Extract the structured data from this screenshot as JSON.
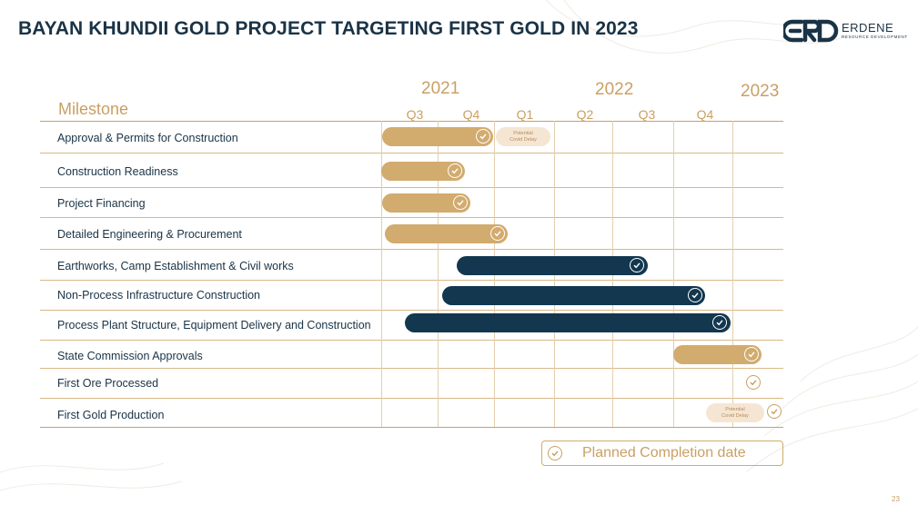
{
  "title": "BAYAN KHUNDII GOLD PROJECT TARGETING FIRST GOLD IN 2023",
  "logo": {
    "name": "ERDENE",
    "tagline": "RESOURCE DEVELOPMENT"
  },
  "timeline": {
    "header": "Milestone",
    "years": [
      "2021",
      "2022",
      "2023"
    ],
    "quarters": [
      "Q3",
      "Q4",
      "Q1",
      "Q2",
      "Q3",
      "Q4"
    ]
  },
  "milestones": [
    {
      "label": "Approval & Permits for Construction",
      "color": "gold",
      "start": "2021 Q3",
      "end": "2021 Q4",
      "completed": true,
      "note": {
        "line1": "Potential",
        "line2": "Covid Delay"
      }
    },
    {
      "label": "Construction Readiness",
      "color": "gold",
      "start": "2021 Q3",
      "end": "2021 Q4",
      "completed": true
    },
    {
      "label": "Project Financing",
      "color": "gold",
      "start": "2021 Q3",
      "end": "2021 Q4",
      "completed": true
    },
    {
      "label": "Detailed Engineering & Procurement",
      "color": "gold",
      "start": "2021 Q3",
      "end": "2021 Q4",
      "completed": true
    },
    {
      "label": "Earthworks, Camp Establishment & Civil works",
      "color": "navy",
      "start": "2021 Q4",
      "end": "2022 Q3",
      "completed": true
    },
    {
      "label": "Non-Process Infrastructure Construction",
      "color": "navy",
      "start": "2021 Q4",
      "end": "2022 Q4",
      "completed": true
    },
    {
      "label": "Process Plant Structure, Equipment Delivery and Construction",
      "color": "navy",
      "start": "2021 Q3",
      "end": "2022 Q4",
      "completed": true
    },
    {
      "label": "State Commission Approvals",
      "color": "gold",
      "start": "2022 Q4",
      "end": "2023",
      "completed": true
    },
    {
      "label": "First Ore Processed",
      "color": "none",
      "start": "2023",
      "end": "2023",
      "completed": true
    },
    {
      "label": "First Gold Production",
      "color": "none",
      "start": "2023",
      "end": "2023",
      "completed": true,
      "note": {
        "line1": "Potential",
        "line2": "Covid Delay"
      }
    }
  ],
  "legend": {
    "label": "Planned Completion date"
  },
  "page_number": "23",
  "colors": {
    "gold": "#d2ab6e",
    "navy": "#12374f",
    "text": "#1a3346",
    "accent": "#c9a064"
  }
}
